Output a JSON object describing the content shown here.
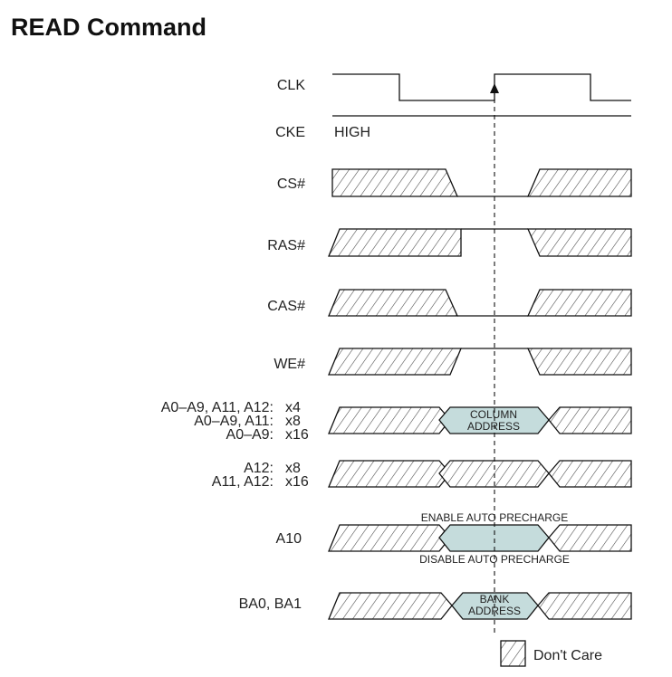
{
  "title": "READ Command",
  "colors": {
    "address_fill": "#c5dcdc",
    "line": "#111111",
    "hatch": "#444444"
  },
  "signals": {
    "clk": "CLK",
    "cke": "CKE",
    "cke_state": "HIGH",
    "cs": "CS#",
    "ras": "RAS#",
    "cas": "CAS#",
    "we": "WE#",
    "a10": "A10",
    "ba": "BA0, BA1"
  },
  "address_labels": {
    "row1_pins": "A0–A9, A11, A12:",
    "row1_width": "x4",
    "row2_pins": "A0–A9, A11:",
    "row2_width": "x8",
    "row3_pins": "A0–A9:",
    "row3_width": "x16",
    "row4_pins": "A12:",
    "row4_width": "x8",
    "row5_pins": "A11, A12:",
    "row5_width": "x16"
  },
  "boxes": {
    "column_line1": "COLUMN",
    "column_line2": "ADDRESS",
    "bank_line1": "BANK",
    "bank_line2": "ADDRESS"
  },
  "annotations": {
    "enable_auto_precharge": "ENABLE AUTO PRECHARGE",
    "disable_auto_precharge": "DISABLE AUTO PRECHARGE"
  },
  "legend": {
    "dont_care": "Don't Care"
  }
}
